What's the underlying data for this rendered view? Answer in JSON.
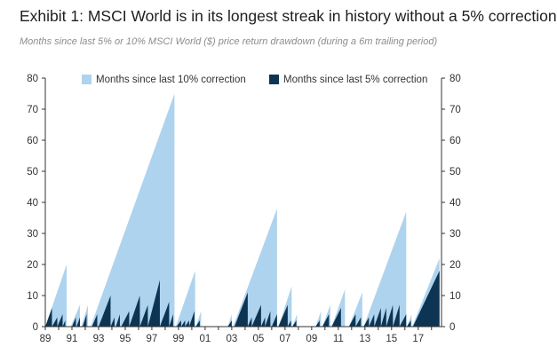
{
  "title": "Exhibit 1: MSCI World is in its longest streak in history without a 5% correction",
  "subtitle": "Months since last 5% or 10% MSCI World ($) price return drawdown (during a 6m trailing period)",
  "chart_data": {
    "type": "area",
    "x_label_years": [
      "89",
      "91",
      "93",
      "95",
      "97",
      "99",
      "01",
      "03",
      "05",
      "07",
      "09",
      "11",
      "13",
      "15",
      "17"
    ],
    "xlim": [
      1989.0,
      2018.75
    ],
    "ylim": [
      0,
      80
    ],
    "y_ticks": [
      0,
      10,
      20,
      30,
      40,
      50,
      60,
      70,
      80
    ],
    "colors": {
      "ten": "#aed3ee",
      "five": "#0d3553",
      "axis": "#333333"
    },
    "series": [
      {
        "name": "Months since last 10% correction",
        "color": "#aed3ee",
        "cycles": [
          {
            "start": 1989.0,
            "end": 1990.6,
            "peak": 20
          },
          {
            "start": 1990.9,
            "end": 1991.6,
            "peak": 7
          },
          {
            "start": 1991.7,
            "end": 1992.2,
            "peak": 7
          },
          {
            "start": 1992.4,
            "end": 1998.7,
            "peak": 75
          },
          {
            "start": 1998.8,
            "end": 2000.25,
            "peak": 18
          },
          {
            "start": 2000.3,
            "end": 2000.7,
            "peak": 5
          },
          {
            "start": 2002.7,
            "end": 2003.0,
            "peak": 4
          },
          {
            "start": 2003.1,
            "end": 2006.4,
            "peak": 38
          },
          {
            "start": 2006.5,
            "end": 2007.5,
            "peak": 13
          },
          {
            "start": 2007.55,
            "end": 2007.9,
            "peak": 4
          },
          {
            "start": 2009.3,
            "end": 2009.7,
            "peak": 5
          },
          {
            "start": 2009.8,
            "end": 2010.4,
            "peak": 7
          },
          {
            "start": 2010.5,
            "end": 2011.5,
            "peak": 12
          },
          {
            "start": 2011.8,
            "end": 2012.8,
            "peak": 11
          },
          {
            "start": 2012.9,
            "end": 2016.1,
            "peak": 37
          },
          {
            "start": 2016.15,
            "end": 2016.5,
            "peak": 4
          },
          {
            "start": 2016.55,
            "end": 2018.6,
            "peak": 22
          }
        ]
      },
      {
        "name": "Months since last 5% correction",
        "color": "#0d3553",
        "cycles": [
          {
            "start": 1989.0,
            "end": 1989.5,
            "peak": 6
          },
          {
            "start": 1989.5,
            "end": 1989.9,
            "peak": 3
          },
          {
            "start": 1989.9,
            "end": 1990.3,
            "peak": 4
          },
          {
            "start": 1990.3,
            "end": 1990.5,
            "peak": 2
          },
          {
            "start": 1991.0,
            "end": 1991.3,
            "peak": 3
          },
          {
            "start": 1991.35,
            "end": 1991.6,
            "peak": 3
          },
          {
            "start": 1991.8,
            "end": 1992.1,
            "peak": 4
          },
          {
            "start": 1992.5,
            "end": 1992.9,
            "peak": 4
          },
          {
            "start": 1993.0,
            "end": 1993.9,
            "peak": 10
          },
          {
            "start": 1993.9,
            "end": 1994.2,
            "peak": 3
          },
          {
            "start": 1994.3,
            "end": 1994.6,
            "peak": 4
          },
          {
            "start": 1994.7,
            "end": 1995.3,
            "peak": 5
          },
          {
            "start": 1995.3,
            "end": 1996.1,
            "peak": 10
          },
          {
            "start": 1996.1,
            "end": 1996.7,
            "peak": 7
          },
          {
            "start": 1996.7,
            "end": 1997.6,
            "peak": 15
          },
          {
            "start": 1997.6,
            "end": 1998.3,
            "peak": 8
          },
          {
            "start": 1998.3,
            "end": 1998.6,
            "peak": 4
          },
          {
            "start": 1998.85,
            "end": 1999.2,
            "peak": 2
          },
          {
            "start": 1999.2,
            "end": 1999.5,
            "peak": 2
          },
          {
            "start": 1999.5,
            "end": 1999.8,
            "peak": 2
          },
          {
            "start": 1999.8,
            "end": 2000.2,
            "peak": 5
          },
          {
            "start": 2000.3,
            "end": 2000.6,
            "peak": 2
          },
          {
            "start": 2002.7,
            "end": 2003.0,
            "peak": 2
          },
          {
            "start": 2003.2,
            "end": 2004.2,
            "peak": 11
          },
          {
            "start": 2004.2,
            "end": 2004.5,
            "peak": 3
          },
          {
            "start": 2004.5,
            "end": 2005.2,
            "peak": 7
          },
          {
            "start": 2005.2,
            "end": 2005.5,
            "peak": 3
          },
          {
            "start": 2005.5,
            "end": 2005.9,
            "peak": 5
          },
          {
            "start": 2006.0,
            "end": 2006.4,
            "peak": 4
          },
          {
            "start": 2006.5,
            "end": 2007.2,
            "peak": 7
          },
          {
            "start": 2007.2,
            "end": 2007.45,
            "peak": 2
          },
          {
            "start": 2007.55,
            "end": 2007.85,
            "peak": 2
          },
          {
            "start": 2009.3,
            "end": 2009.6,
            "peak": 2
          },
          {
            "start": 2009.8,
            "end": 2010.3,
            "peak": 4
          },
          {
            "start": 2010.5,
            "end": 2011.2,
            "peak": 6
          },
          {
            "start": 2011.8,
            "end": 2012.3,
            "peak": 4
          },
          {
            "start": 2012.3,
            "end": 2012.7,
            "peak": 3
          },
          {
            "start": 2012.9,
            "end": 2013.3,
            "peak": 3
          },
          {
            "start": 2013.3,
            "end": 2013.7,
            "peak": 4
          },
          {
            "start": 2013.7,
            "end": 2014.2,
            "peak": 6
          },
          {
            "start": 2014.2,
            "end": 2014.6,
            "peak": 6
          },
          {
            "start": 2014.6,
            "end": 2015.1,
            "peak": 7
          },
          {
            "start": 2015.1,
            "end": 2015.6,
            "peak": 7
          },
          {
            "start": 2015.6,
            "end": 2016.1,
            "peak": 4
          },
          {
            "start": 2016.15,
            "end": 2016.45,
            "peak": 2
          },
          {
            "start": 2016.6,
            "end": 2018.6,
            "peak": 18
          }
        ]
      }
    ],
    "legend": [
      "Months since last 10% correction",
      "Months since last 5% correction"
    ],
    "legend_position": "top"
  }
}
